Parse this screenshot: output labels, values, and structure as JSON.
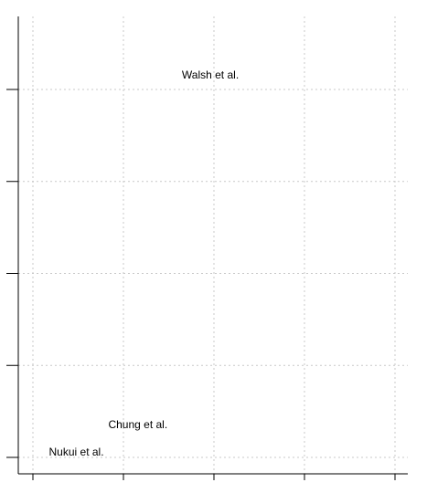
{
  "chart_data": {
    "type": "scatter",
    "title": "",
    "xlabel": "",
    "ylabel": "",
    "xlim": [
      0,
      10
    ],
    "ylim": [
      0,
      10
    ],
    "x_ticks": [
      0,
      2.5,
      5,
      7.5,
      10
    ],
    "y_ticks": [
      0,
      2,
      4,
      6,
      8
    ],
    "x_tick_labels": [],
    "y_tick_labels": [],
    "grid": true,
    "points": [
      {
        "label": "Walsh et al.",
        "x": 4.9,
        "y": 8.3
      },
      {
        "label": "Chung et al.",
        "x": 2.9,
        "y": 0.7
      },
      {
        "label": "Nukui et al.",
        "x": 1.2,
        "y": 0.1
      }
    ]
  }
}
